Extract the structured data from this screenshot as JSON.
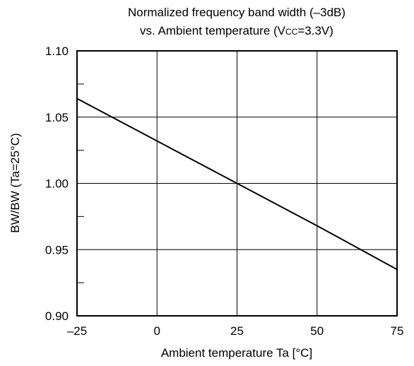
{
  "chart_data": {
    "type": "line",
    "title_line1": "Normalized frequency band width (–3dB)",
    "title_line2_prefix": "vs. Ambient temperature (V",
    "title_line2_sub": "CC",
    "title_line2_suffix": "=3.3V)",
    "xlabel": "Ambient temperature Ta [°C]",
    "ylabel": "BW/BW (Ta=25°C)",
    "xlim": [
      -25,
      75
    ],
    "ylim": [
      0.9,
      1.1
    ],
    "x_ticks": [
      -25,
      0,
      25,
      50,
      75
    ],
    "x_tick_labels": [
      "–25",
      "0",
      "25",
      "50",
      "75"
    ],
    "y_ticks": [
      0.9,
      0.95,
      1.0,
      1.05,
      1.1
    ],
    "y_tick_labels": [
      "0.90",
      "0.95",
      "1.00",
      "1.05",
      "1.10"
    ],
    "y_minor_ticks": [
      0.925,
      0.975,
      1.025,
      1.075
    ],
    "grid": true,
    "series": [
      {
        "x": [
          -25,
          0,
          25,
          50,
          75
        ],
        "y": [
          1.064,
          1.032,
          1.0,
          0.968,
          0.935
        ]
      }
    ]
  }
}
